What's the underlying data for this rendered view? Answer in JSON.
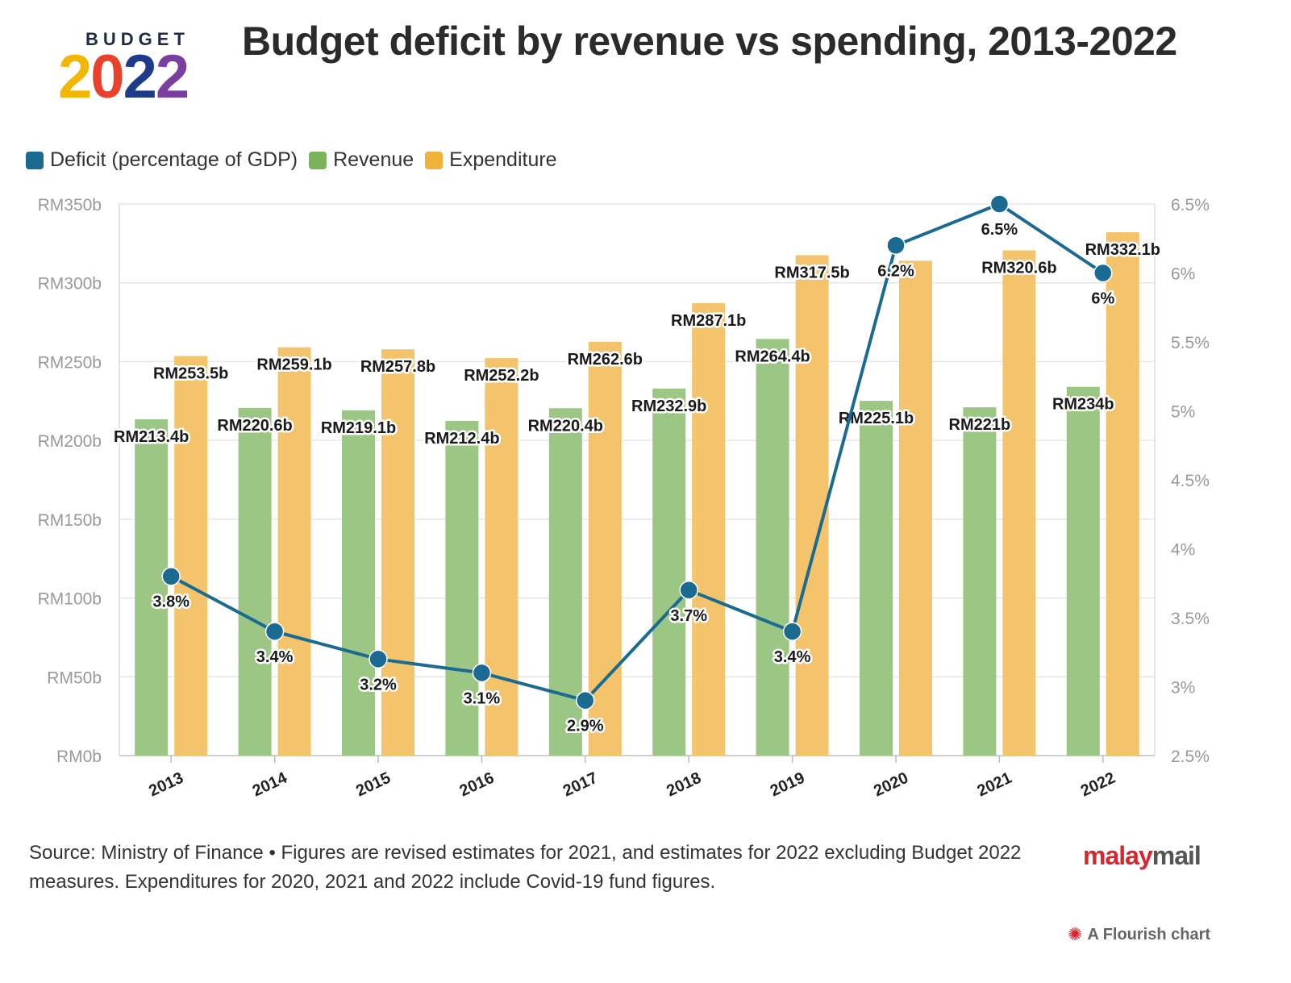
{
  "logo": {
    "word": "BUDGET",
    "year_chars": [
      "2",
      "0",
      "2",
      "2"
    ],
    "year_colors": [
      "#f2b705",
      "#e8412c",
      "#1e3a8a",
      "#7b3fa0"
    ]
  },
  "title": "Budget deficit by revenue vs spending, 2013-2022",
  "legend": [
    {
      "label": "Deficit (percentage of GDP)",
      "color": "#1b6a92"
    },
    {
      "label": "Revenue",
      "color": "#7ab35a"
    },
    {
      "label": "Expenditure",
      "color": "#f0b23a"
    }
  ],
  "chart_data": {
    "type": "bar",
    "categories": [
      "2013",
      "2014",
      "2015",
      "2016",
      "2017",
      "2018",
      "2019",
      "2020",
      "2021",
      "2022"
    ],
    "series": [
      {
        "name": "Revenue",
        "type": "bar",
        "axis": "left",
        "color": "#9cc684",
        "values": [
          213.4,
          220.6,
          219.1,
          212.4,
          220.4,
          232.9,
          264.4,
          225.1,
          221,
          234
        ],
        "labels": [
          "RM213.4b",
          "RM220.6b",
          "RM219.1b",
          "RM212.4b",
          "RM220.4b",
          "RM232.9b",
          "RM264.4b",
          "RM225.1b",
          "RM221b",
          "RM234b"
        ]
      },
      {
        "name": "Expenditure",
        "type": "bar",
        "axis": "left",
        "color": "#f3c46b",
        "values": [
          253.5,
          259.1,
          257.8,
          252.2,
          262.6,
          287.1,
          317.5,
          314,
          320.6,
          332.1
        ],
        "labels": [
          "RM253.5b",
          "RM259.1b",
          "RM257.8b",
          "RM252.2b",
          "RM262.6b",
          "RM287.1b",
          "RM317.5b",
          "",
          "RM320.6b",
          "RM332.1b"
        ]
      },
      {
        "name": "Deficit (percentage of GDP)",
        "type": "line",
        "axis": "right",
        "color": "#1b6a92",
        "values": [
          3.8,
          3.4,
          3.2,
          3.1,
          2.9,
          3.7,
          3.4,
          6.2,
          6.5,
          6.0
        ],
        "labels": [
          "3.8%",
          "3.4%",
          "3.2%",
          "3.1%",
          "2.9%",
          "3.7%",
          "3.4%",
          "6.2%",
          "6.5%",
          "6%"
        ]
      }
    ],
    "left_axis": {
      "ylim": [
        0,
        350
      ],
      "ticks": [
        "RM0b",
        "RM50b",
        "RM100b",
        "RM150b",
        "RM200b",
        "RM250b",
        "RM300b",
        "RM350b"
      ]
    },
    "right_axis": {
      "ylim": [
        2.5,
        6.5
      ],
      "ticks": [
        "2.5%",
        "3%",
        "3.5%",
        "4%",
        "4.5%",
        "5%",
        "5.5%",
        "6%",
        "6.5%"
      ]
    },
    "grid": true,
    "legend_position": "top-left"
  },
  "footer": {
    "line1": "Source: Ministry of Finance • Figures are revised estimates for 2021, and estimates for 2022 excluding Budget 2022",
    "line2": "measures. Expenditures for 2020, 2021 and 2022 include Covid-19 fund figures."
  },
  "brand": {
    "part1": "malay",
    "part2": "mail"
  },
  "credit": "A Flourish chart"
}
